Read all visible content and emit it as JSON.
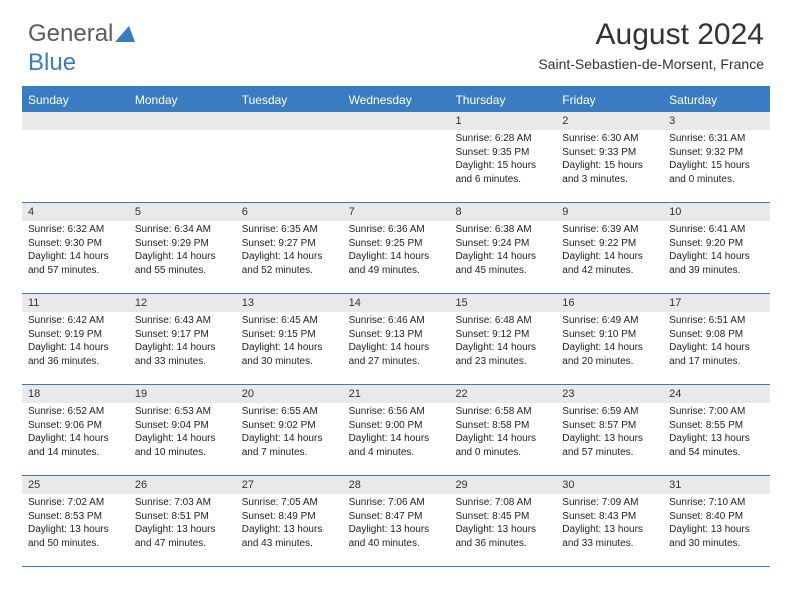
{
  "brand": {
    "part1": "General",
    "part2": "Blue"
  },
  "title": "August 2024",
  "location": "Saint-Sebastien-de-Morsent, France",
  "colors": {
    "header_bar": "#3a7cc2",
    "daynum_bg": "#e9e9e9",
    "text": "#222222",
    "title_text": "#333333"
  },
  "typography": {
    "title_fontsize": 30,
    "location_fontsize": 14,
    "dow_fontsize": 12,
    "daynum_fontsize": 11,
    "body_fontsize": 10
  },
  "days_of_week": [
    "Sunday",
    "Monday",
    "Tuesday",
    "Wednesday",
    "Thursday",
    "Friday",
    "Saturday"
  ],
  "weeks": [
    [
      {
        "n": "",
        "sunrise": "",
        "sunset": "",
        "daylight": ""
      },
      {
        "n": "",
        "sunrise": "",
        "sunset": "",
        "daylight": ""
      },
      {
        "n": "",
        "sunrise": "",
        "sunset": "",
        "daylight": ""
      },
      {
        "n": "",
        "sunrise": "",
        "sunset": "",
        "daylight": ""
      },
      {
        "n": "1",
        "sunrise": "Sunrise: 6:28 AM",
        "sunset": "Sunset: 9:35 PM",
        "daylight": "Daylight: 15 hours and 6 minutes."
      },
      {
        "n": "2",
        "sunrise": "Sunrise: 6:30 AM",
        "sunset": "Sunset: 9:33 PM",
        "daylight": "Daylight: 15 hours and 3 minutes."
      },
      {
        "n": "3",
        "sunrise": "Sunrise: 6:31 AM",
        "sunset": "Sunset: 9:32 PM",
        "daylight": "Daylight: 15 hours and 0 minutes."
      }
    ],
    [
      {
        "n": "4",
        "sunrise": "Sunrise: 6:32 AM",
        "sunset": "Sunset: 9:30 PM",
        "daylight": "Daylight: 14 hours and 57 minutes."
      },
      {
        "n": "5",
        "sunrise": "Sunrise: 6:34 AM",
        "sunset": "Sunset: 9:29 PM",
        "daylight": "Daylight: 14 hours and 55 minutes."
      },
      {
        "n": "6",
        "sunrise": "Sunrise: 6:35 AM",
        "sunset": "Sunset: 9:27 PM",
        "daylight": "Daylight: 14 hours and 52 minutes."
      },
      {
        "n": "7",
        "sunrise": "Sunrise: 6:36 AM",
        "sunset": "Sunset: 9:25 PM",
        "daylight": "Daylight: 14 hours and 49 minutes."
      },
      {
        "n": "8",
        "sunrise": "Sunrise: 6:38 AM",
        "sunset": "Sunset: 9:24 PM",
        "daylight": "Daylight: 14 hours and 45 minutes."
      },
      {
        "n": "9",
        "sunrise": "Sunrise: 6:39 AM",
        "sunset": "Sunset: 9:22 PM",
        "daylight": "Daylight: 14 hours and 42 minutes."
      },
      {
        "n": "10",
        "sunrise": "Sunrise: 6:41 AM",
        "sunset": "Sunset: 9:20 PM",
        "daylight": "Daylight: 14 hours and 39 minutes."
      }
    ],
    [
      {
        "n": "11",
        "sunrise": "Sunrise: 6:42 AM",
        "sunset": "Sunset: 9:19 PM",
        "daylight": "Daylight: 14 hours and 36 minutes."
      },
      {
        "n": "12",
        "sunrise": "Sunrise: 6:43 AM",
        "sunset": "Sunset: 9:17 PM",
        "daylight": "Daylight: 14 hours and 33 minutes."
      },
      {
        "n": "13",
        "sunrise": "Sunrise: 6:45 AM",
        "sunset": "Sunset: 9:15 PM",
        "daylight": "Daylight: 14 hours and 30 minutes."
      },
      {
        "n": "14",
        "sunrise": "Sunrise: 6:46 AM",
        "sunset": "Sunset: 9:13 PM",
        "daylight": "Daylight: 14 hours and 27 minutes."
      },
      {
        "n": "15",
        "sunrise": "Sunrise: 6:48 AM",
        "sunset": "Sunset: 9:12 PM",
        "daylight": "Daylight: 14 hours and 23 minutes."
      },
      {
        "n": "16",
        "sunrise": "Sunrise: 6:49 AM",
        "sunset": "Sunset: 9:10 PM",
        "daylight": "Daylight: 14 hours and 20 minutes."
      },
      {
        "n": "17",
        "sunrise": "Sunrise: 6:51 AM",
        "sunset": "Sunset: 9:08 PM",
        "daylight": "Daylight: 14 hours and 17 minutes."
      }
    ],
    [
      {
        "n": "18",
        "sunrise": "Sunrise: 6:52 AM",
        "sunset": "Sunset: 9:06 PM",
        "daylight": "Daylight: 14 hours and 14 minutes."
      },
      {
        "n": "19",
        "sunrise": "Sunrise: 6:53 AM",
        "sunset": "Sunset: 9:04 PM",
        "daylight": "Daylight: 14 hours and 10 minutes."
      },
      {
        "n": "20",
        "sunrise": "Sunrise: 6:55 AM",
        "sunset": "Sunset: 9:02 PM",
        "daylight": "Daylight: 14 hours and 7 minutes."
      },
      {
        "n": "21",
        "sunrise": "Sunrise: 6:56 AM",
        "sunset": "Sunset: 9:00 PM",
        "daylight": "Daylight: 14 hours and 4 minutes."
      },
      {
        "n": "22",
        "sunrise": "Sunrise: 6:58 AM",
        "sunset": "Sunset: 8:58 PM",
        "daylight": "Daylight: 14 hours and 0 minutes."
      },
      {
        "n": "23",
        "sunrise": "Sunrise: 6:59 AM",
        "sunset": "Sunset: 8:57 PM",
        "daylight": "Daylight: 13 hours and 57 minutes."
      },
      {
        "n": "24",
        "sunrise": "Sunrise: 7:00 AM",
        "sunset": "Sunset: 8:55 PM",
        "daylight": "Daylight: 13 hours and 54 minutes."
      }
    ],
    [
      {
        "n": "25",
        "sunrise": "Sunrise: 7:02 AM",
        "sunset": "Sunset: 8:53 PM",
        "daylight": "Daylight: 13 hours and 50 minutes."
      },
      {
        "n": "26",
        "sunrise": "Sunrise: 7:03 AM",
        "sunset": "Sunset: 8:51 PM",
        "daylight": "Daylight: 13 hours and 47 minutes."
      },
      {
        "n": "27",
        "sunrise": "Sunrise: 7:05 AM",
        "sunset": "Sunset: 8:49 PM",
        "daylight": "Daylight: 13 hours and 43 minutes."
      },
      {
        "n": "28",
        "sunrise": "Sunrise: 7:06 AM",
        "sunset": "Sunset: 8:47 PM",
        "daylight": "Daylight: 13 hours and 40 minutes."
      },
      {
        "n": "29",
        "sunrise": "Sunrise: 7:08 AM",
        "sunset": "Sunset: 8:45 PM",
        "daylight": "Daylight: 13 hours and 36 minutes."
      },
      {
        "n": "30",
        "sunrise": "Sunrise: 7:09 AM",
        "sunset": "Sunset: 8:43 PM",
        "daylight": "Daylight: 13 hours and 33 minutes."
      },
      {
        "n": "31",
        "sunrise": "Sunrise: 7:10 AM",
        "sunset": "Sunset: 8:40 PM",
        "daylight": "Daylight: 13 hours and 30 minutes."
      }
    ]
  ]
}
